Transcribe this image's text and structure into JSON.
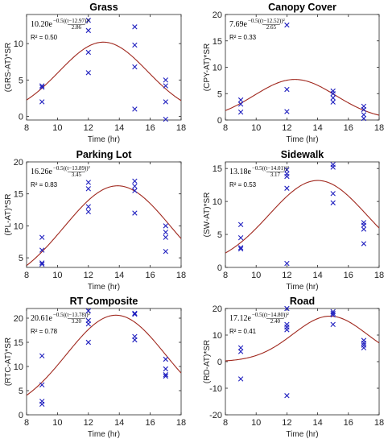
{
  "colors": {
    "marker": "#1f1fbf",
    "curve": "#a0281e",
    "axis": "#262626"
  },
  "chart_data": [
    {
      "type": "scatter",
      "title": "Grass",
      "xlabel": "Time (hr)",
      "ylabel": "(GRS-AT)*SR",
      "xlim": [
        8,
        18
      ],
      "ylim": [
        -0.5,
        14
      ],
      "xticks": [
        8,
        10,
        12,
        14,
        16,
        18
      ],
      "yticks": [
        0,
        5,
        10
      ],
      "equation": {
        "amp": "10.20",
        "mean": "12.97",
        "sigma": "2.86",
        "r2": "R² = 0.50"
      },
      "fit": {
        "amp": 10.2,
        "mean": 12.97,
        "sigma": 2.86
      },
      "points": [
        [
          9,
          4.2
        ],
        [
          9,
          4.0
        ],
        [
          9,
          2.0
        ],
        [
          12,
          13.2
        ],
        [
          12,
          11.8
        ],
        [
          12,
          8.8
        ],
        [
          12,
          6.0
        ],
        [
          15,
          12.3
        ],
        [
          15,
          9.8
        ],
        [
          15,
          6.8
        ],
        [
          15,
          1.0
        ],
        [
          17,
          5.0
        ],
        [
          17,
          4.2
        ],
        [
          17,
          2.0
        ],
        [
          17,
          -0.4
        ]
      ]
    },
    {
      "type": "scatter",
      "title": "Canopy Cover",
      "xlabel": "Time (hr)",
      "ylabel": "(CPY-AT)*SR",
      "xlim": [
        8,
        18
      ],
      "ylim": [
        0,
        20
      ],
      "xticks": [
        8,
        10,
        12,
        14,
        16,
        18
      ],
      "yticks": [
        0,
        5,
        10,
        15,
        20
      ],
      "equation": {
        "amp": "7.69",
        "mean": "12.52",
        "sigma": "2.65",
        "r2": "R² = 0.33"
      },
      "fit": {
        "amp": 7.69,
        "mean": 12.52,
        "sigma": 2.65
      },
      "points": [
        [
          9,
          3.8
        ],
        [
          9,
          3.0
        ],
        [
          9,
          1.5
        ],
        [
          12,
          18.0
        ],
        [
          12,
          5.8
        ],
        [
          12,
          1.6
        ],
        [
          15,
          5.5
        ],
        [
          15,
          5.0
        ],
        [
          15,
          4.2
        ],
        [
          15,
          3.4
        ],
        [
          17,
          2.6
        ],
        [
          17,
          2.0
        ],
        [
          17,
          1.0
        ],
        [
          17,
          0.3
        ]
      ]
    },
    {
      "type": "scatter",
      "title": "Parking Lot",
      "xlabel": "Time (hr)",
      "ylabel": "(PL-AT)*SR",
      "xlim": [
        8,
        18
      ],
      "ylim": [
        3.5,
        20
      ],
      "xticks": [
        8,
        10,
        12,
        14,
        16,
        18
      ],
      "yticks": [
        5,
        10,
        15,
        20
      ],
      "equation": {
        "amp": "16.26",
        "mean": "13.89",
        "sigma": "3.45",
        "r2": "R² = 0.83"
      },
      "fit": {
        "amp": 16.26,
        "mean": 13.89,
        "sigma": 3.45
      },
      "points": [
        [
          9,
          8.2
        ],
        [
          9,
          6.2
        ],
        [
          9,
          4.2
        ],
        [
          9,
          4.0
        ],
        [
          12,
          16.8
        ],
        [
          12,
          15.8
        ],
        [
          12,
          13.0
        ],
        [
          12,
          12.2
        ],
        [
          15,
          17.0
        ],
        [
          15,
          16.2
        ],
        [
          15,
          15.5
        ],
        [
          15,
          12.0
        ],
        [
          17,
          10.0
        ],
        [
          17,
          9.0
        ],
        [
          17,
          8.2
        ],
        [
          17,
          6.0
        ]
      ]
    },
    {
      "type": "scatter",
      "title": "Sidewalk",
      "xlabel": "Time (hr)",
      "ylabel": "(SW-AT)*SR",
      "xlim": [
        8,
        18
      ],
      "ylim": [
        0,
        16
      ],
      "xticks": [
        8,
        10,
        12,
        14,
        16,
        18
      ],
      "yticks": [
        0,
        5,
        10,
        15
      ],
      "equation": {
        "amp": "13.18",
        "mean": "14.01",
        "sigma": "3.17",
        "r2": "R² = 0.53"
      },
      "fit": {
        "amp": 13.18,
        "mean": 14.01,
        "sigma": 3.17
      },
      "points": [
        [
          9,
          6.5
        ],
        [
          9,
          4.5
        ],
        [
          9,
          3.0
        ],
        [
          9,
          2.8
        ],
        [
          12,
          14.8
        ],
        [
          12,
          14.2
        ],
        [
          12,
          13.8
        ],
        [
          12,
          12.0
        ],
        [
          12,
          0.6
        ],
        [
          15,
          15.6
        ],
        [
          15,
          15.2
        ],
        [
          15,
          11.2
        ],
        [
          15,
          9.8
        ],
        [
          17,
          6.8
        ],
        [
          17,
          6.4
        ],
        [
          17,
          5.8
        ],
        [
          17,
          3.6
        ]
      ]
    },
    {
      "type": "scatter",
      "title": "RT Composite",
      "xlabel": "Time (hr)",
      "ylabel": "(RTC-AT)*SR",
      "xlim": [
        8,
        18
      ],
      "ylim": [
        0,
        22
      ],
      "xticks": [
        8,
        10,
        12,
        14,
        16,
        18
      ],
      "yticks": [
        0,
        5,
        10,
        15,
        20
      ],
      "equation": {
        "amp": "20.61",
        "mean": "13.78",
        "sigma": "3.20",
        "r2": "R² = 0.78"
      },
      "fit": {
        "amp": 20.61,
        "mean": 13.78,
        "sigma": 3.2
      },
      "points": [
        [
          9,
          12.2
        ],
        [
          9,
          6.2
        ],
        [
          9,
          2.8
        ],
        [
          9,
          2.2
        ],
        [
          12,
          21.5
        ],
        [
          12,
          19.5
        ],
        [
          12,
          18.8
        ],
        [
          12,
          15.0
        ],
        [
          15,
          21.0
        ],
        [
          15,
          20.8
        ],
        [
          15,
          16.2
        ],
        [
          15,
          15.5
        ],
        [
          17,
          11.5
        ],
        [
          17,
          9.5
        ],
        [
          17,
          8.3
        ],
        [
          17,
          8.0
        ]
      ]
    },
    {
      "type": "scatter",
      "title": "Road",
      "xlabel": "Time (hr)",
      "ylabel": "(RD-AT)*SR",
      "xlim": [
        8,
        18
      ],
      "ylim": [
        -20,
        20
      ],
      "xticks": [
        8,
        10,
        12,
        14,
        16,
        18
      ],
      "yticks": [
        -20,
        -10,
        0,
        10,
        20
      ],
      "equation": {
        "amp": "17.12",
        "mean": "14.80",
        "sigma": "2.40",
        "r2": "R² = 0.41"
      },
      "fit": {
        "amp": 17.12,
        "mean": 14.8,
        "sigma": 2.4
      },
      "points": [
        [
          9,
          5.2
        ],
        [
          9,
          3.8
        ],
        [
          9,
          -6.5
        ],
        [
          12,
          20.0
        ],
        [
          12,
          14.0
        ],
        [
          12,
          13.0
        ],
        [
          12,
          12.0
        ],
        [
          12,
          -12.8
        ],
        [
          15,
          18.8
        ],
        [
          15,
          18.2
        ],
        [
          15,
          17.6
        ],
        [
          15,
          14.0
        ],
        [
          17,
          8.0
        ],
        [
          17,
          7.0
        ],
        [
          17,
          6.2
        ],
        [
          17,
          5.2
        ]
      ]
    }
  ]
}
